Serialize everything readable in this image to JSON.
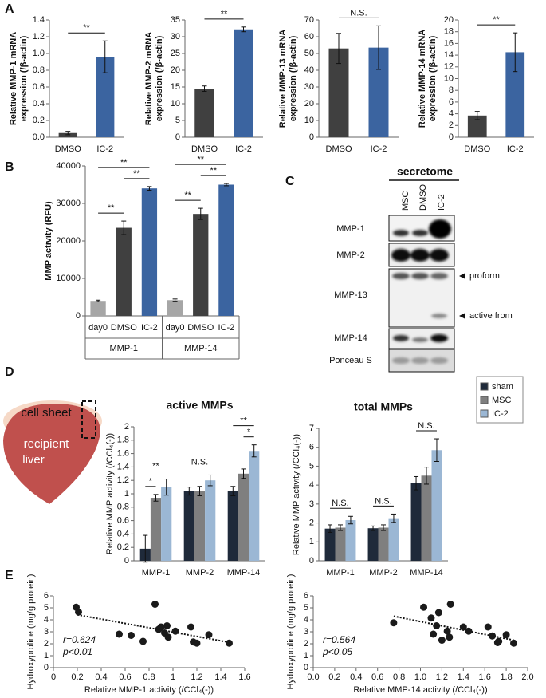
{
  "panels": [
    "A",
    "B",
    "C",
    "D",
    "E"
  ],
  "blot": {
    "header": "secretome",
    "lanes": [
      "MSC",
      "DMSO",
      "IC-2"
    ],
    "rows": [
      "MMP-1",
      "MMP-2",
      "MMP-13",
      "MMP-14",
      "Ponceau S"
    ],
    "markers": [
      "proform",
      "active from"
    ]
  },
  "diagram": {
    "sheet": "cell sheet",
    "liver": [
      "recipient",
      "liver"
    ]
  },
  "chart_data": [
    {
      "type": "bar",
      "ylabel": [
        "Relative MMP-1 mRNA",
        "expression (/β-actin)"
      ],
      "categories": [
        "DMSO",
        "IC-2"
      ],
      "values": [
        0.05,
        0.96
      ],
      "errors": [
        0.02,
        0.19
      ],
      "colors": [
        "#404040",
        "#3b64a0"
      ],
      "ylim": [
        0,
        1.4
      ],
      "yticks": [
        {
          "value": 0,
          "label": "0.0"
        },
        0.2,
        0.4,
        0.6,
        0.8,
        {
          "value": 1,
          "label": "1.0"
        },
        1.2,
        1.4
      ],
      "annotations": [
        {
          "text": "**",
          "pair": [
            0,
            1
          ]
        }
      ]
    },
    {
      "type": "bar",
      "ylabel": [
        "Relative MMP-2 mRNA",
        "expression (/β-actin)"
      ],
      "categories": [
        "DMSO",
        "IC-2"
      ],
      "values": [
        14.5,
        32.2
      ],
      "errors": [
        0.8,
        0.7
      ],
      "colors": [
        "#404040",
        "#3b64a0"
      ],
      "ylim": [
        0,
        35
      ],
      "yticks": [
        0,
        5,
        10,
        15,
        20,
        25,
        30,
        35
      ],
      "annotations": [
        {
          "text": "**",
          "pair": [
            0,
            1
          ]
        }
      ]
    },
    {
      "type": "bar",
      "ylabel": [
        "Relative MMP-13 mRNA",
        "expression (/β-actin)"
      ],
      "categories": [
        "DMSO",
        "IC-2"
      ],
      "values": [
        53,
        53.5
      ],
      "errors": [
        9,
        13
      ],
      "colors": [
        "#404040",
        "#3b64a0"
      ],
      "ylim": [
        0,
        70
      ],
      "yticks": [
        0,
        10,
        20,
        30,
        40,
        50,
        60,
        70
      ],
      "annotations": [
        {
          "text": "N.S.",
          "pair": [
            0,
            1
          ]
        }
      ]
    },
    {
      "type": "bar",
      "ylabel": [
        "Relative MMP-14 mRNA",
        "expression (/β-actin)"
      ],
      "categories": [
        "DMSO",
        "IC-2"
      ],
      "values": [
        3.7,
        14.5
      ],
      "errors": [
        0.7,
        3.3
      ],
      "colors": [
        "#404040",
        "#3b64a0"
      ],
      "ylim": [
        0,
        20
      ],
      "yticks": [
        0,
        2,
        4,
        6,
        8,
        10,
        12,
        14,
        16,
        18,
        20
      ],
      "annotations": [
        {
          "text": "**",
          "pair": [
            0,
            1
          ]
        }
      ]
    },
    {
      "type": "bar",
      "ylabel": [
        "MMP activity (RFU)"
      ],
      "categories": [
        "day0",
        "DMSO",
        "IC-2",
        "day0",
        "DMSO",
        "IC-2"
      ],
      "groups": [
        "MMP-1",
        "MMP-14"
      ],
      "values": [
        4000,
        23500,
        34000,
        4200,
        27200,
        35000
      ],
      "errors": [
        200,
        1800,
        500,
        300,
        1500,
        300
      ],
      "colors": [
        "#a6a6a6",
        "#404040",
        "#3b64a0",
        "#a6a6a6",
        "#404040",
        "#3b64a0"
      ],
      "ylim": [
        0,
        40000
      ],
      "yticks": [
        0,
        10000,
        20000,
        30000,
        40000
      ],
      "annotations": [
        {
          "text": "**",
          "pair": [
            0,
            1
          ]
        },
        {
          "text": "**",
          "pair": [
            1,
            2
          ]
        },
        {
          "text": "**",
          "pair": [
            0,
            2
          ]
        },
        {
          "text": "**",
          "pair": [
            3,
            4
          ]
        },
        {
          "text": "**",
          "pair": [
            4,
            5
          ]
        },
        {
          "text": "**",
          "pair": [
            3,
            5
          ]
        }
      ]
    },
    {
      "type": "grouped_bar",
      "title": "active MMPs",
      "ylabel": [
        "Relative MMP activity (/CCl₄(-))"
      ],
      "categories": [
        "MMP-1",
        "MMP-2",
        "MMP-14"
      ],
      "legend": "upper right",
      "series": [
        {
          "name": "sham",
          "color": "#1f2a3a",
          "values": [
            0.18,
            1.04,
            1.04
          ],
          "errors": [
            0.2,
            0.06,
            0.07
          ]
        },
        {
          "name": "MSC",
          "color": "#7f7f7f",
          "values": [
            0.94,
            1.04,
            1.3
          ],
          "errors": [
            0.05,
            0.07,
            0.07
          ]
        },
        {
          "name": "IC-2",
          "color": "#9bb7d4",
          "values": [
            1.1,
            1.2,
            1.64
          ],
          "errors": [
            0.12,
            0.08,
            0.09
          ]
        }
      ],
      "ylim": [
        0,
        2
      ],
      "yticks": [
        0,
        0.2,
        0.4,
        0.6,
        0.8,
        1,
        1.2,
        1.4,
        1.6,
        1.8,
        2
      ],
      "annotations": [
        {
          "text": "*",
          "category": 0,
          "pair": [
            0,
            1
          ]
        },
        {
          "text": "**",
          "category": 0,
          "pair": [
            0,
            2
          ]
        },
        {
          "text": "N.S.",
          "category": 1,
          "pair": [
            0,
            2
          ]
        },
        {
          "text": "*",
          "category": 2,
          "pair": [
            1,
            2
          ]
        },
        {
          "text": "**",
          "category": 2,
          "pair": [
            0,
            2
          ]
        }
      ]
    },
    {
      "type": "grouped_bar",
      "title": "total MMPs",
      "ylabel": [
        "Relative MMP activity (/CCl₄(-))"
      ],
      "categories": [
        "MMP-1",
        "MMP-2",
        "MMP-14"
      ],
      "series": [
        {
          "color": "#1f2a3a",
          "values": [
            1.7,
            1.72,
            4.1
          ],
          "errors": [
            0.2,
            0.12,
            0.35
          ]
        },
        {
          "color": "#7f7f7f",
          "values": [
            1.75,
            1.75,
            4.5
          ],
          "errors": [
            0.15,
            0.15,
            0.45
          ]
        },
        {
          "color": "#9bb7d4",
          "values": [
            2.15,
            2.25,
            5.85
          ],
          "errors": [
            0.2,
            0.22,
            0.6
          ]
        }
      ],
      "ylim": [
        0,
        7
      ],
      "yticks": [
        0,
        1,
        2,
        3,
        4,
        5,
        6,
        7
      ],
      "annotations": [
        {
          "text": "N.S.",
          "category": 0,
          "pair": [
            0,
            2
          ]
        },
        {
          "text": "N.S.",
          "category": 1,
          "pair": [
            0,
            2
          ]
        },
        {
          "text": "N.S.",
          "category": 2,
          "pair": [
            0,
            2
          ]
        }
      ]
    },
    {
      "type": "scatter",
      "xlabel": "Relative MMP-1 activity (/CCl₄(-))",
      "ylabel": [
        "Hydroxyproline (mg/g protein)"
      ],
      "color": "#1a1a1a",
      "x": [
        0.19,
        0.21,
        0.85,
        0.55,
        0.65,
        0.75,
        0.88,
        0.9,
        0.95,
        0.93,
        0.96,
        1.02,
        1.15,
        1.17,
        1.2,
        1.3,
        1.47
      ],
      "y": [
        5.05,
        4.65,
        5.3,
        2.8,
        2.7,
        2.2,
        3.2,
        3.4,
        3.5,
        2.9,
        2.55,
        3.05,
        3.4,
        2.15,
        2.05,
        2.75,
        2.05
      ],
      "trendline": {
        "x": [
          0.2,
          1.47
        ],
        "y": [
          4.42,
          2.12
        ]
      },
      "stats": [
        "r=0.624",
        "p<0.01"
      ],
      "xlim": [
        0,
        1.6
      ],
      "xticks": [
        0,
        0.2,
        0.4,
        0.6,
        0.8,
        1,
        1.2,
        1.4,
        1.6
      ],
      "ylim": [
        0,
        6
      ],
      "yticks": [
        0,
        1,
        2,
        3,
        4,
        5,
        6
      ]
    },
    {
      "type": "scatter",
      "xlabel": "Relative MMP-14 activity (/CCl₄(-))",
      "ylabel": [
        "Hydroxyproline (mg/g protein)"
      ],
      "color": "#1a1a1a",
      "x": [
        0.75,
        1.03,
        1.1,
        1.12,
        1.15,
        1.17,
        1.2,
        1.25,
        1.27,
        1.28,
        1.4,
        1.45,
        1.63,
        1.67,
        1.72,
        1.73,
        1.8,
        1.87
      ],
      "y": [
        3.75,
        5.05,
        4.15,
        2.8,
        3.5,
        4.6,
        2.3,
        3.05,
        2.55,
        5.3,
        3.4,
        3.05,
        3.4,
        2.65,
        2.1,
        2.2,
        2.75,
        2.05
      ],
      "trendline": {
        "x": [
          0.75,
          1.87
        ],
        "y": [
          4.3,
          2.3
        ]
      },
      "stats": [
        "r=0.564",
        "p<0.05"
      ],
      "xlim": [
        0,
        2
      ],
      "xticks": [
        {
          "value": 0,
          "label": "0.0"
        },
        0.2,
        0.4,
        0.6,
        0.8,
        {
          "value": 1,
          "label": "1.0"
        },
        1.2,
        1.4,
        1.6,
        1.8,
        {
          "value": 2,
          "label": "2.0"
        }
      ],
      "ylim": [
        0,
        6
      ],
      "yticks": [
        0,
        1,
        2,
        3,
        4,
        5,
        6
      ]
    }
  ]
}
